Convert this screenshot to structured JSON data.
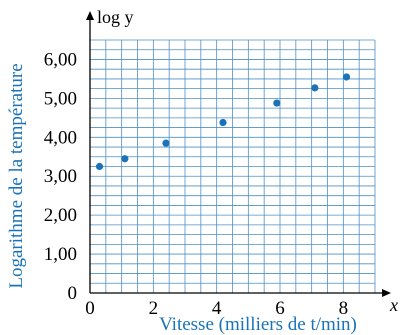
{
  "chart_data": {
    "type": "scatter",
    "x": [
      0.3,
      1.1,
      2.4,
      4.2,
      5.9,
      7.1,
      8.1
    ],
    "y": [
      3.25,
      3.45,
      3.85,
      4.38,
      4.88,
      5.27,
      5.55
    ],
    "xlabel": "Vitesse (milliers de t/min)",
    "ylabel": "Logarithme de la température",
    "x_axis_symbol": "x",
    "y_axis_symbol": "log y",
    "xlim": [
      0,
      9
    ],
    "ylim": [
      0,
      6.5
    ],
    "x_ticks": [
      {
        "value": 0,
        "label": "0"
      },
      {
        "value": 2,
        "label": "2"
      },
      {
        "value": 4,
        "label": "4"
      },
      {
        "value": 6,
        "label": "6"
      },
      {
        "value": 8,
        "label": "8"
      }
    ],
    "y_ticks": [
      {
        "value": 1,
        "label": "1,00"
      },
      {
        "value": 2,
        "label": "2,00"
      },
      {
        "value": 3,
        "label": "3,00"
      },
      {
        "value": 4,
        "label": "4,00"
      },
      {
        "value": 5,
        "label": "5,00"
      },
      {
        "value": 6,
        "label": "6,00"
      }
    ],
    "grid": true,
    "colors": {
      "grid": "#4f8fc4",
      "points": "#1a73b8",
      "axis_label": "#1a73b8",
      "text": "#000000"
    }
  }
}
